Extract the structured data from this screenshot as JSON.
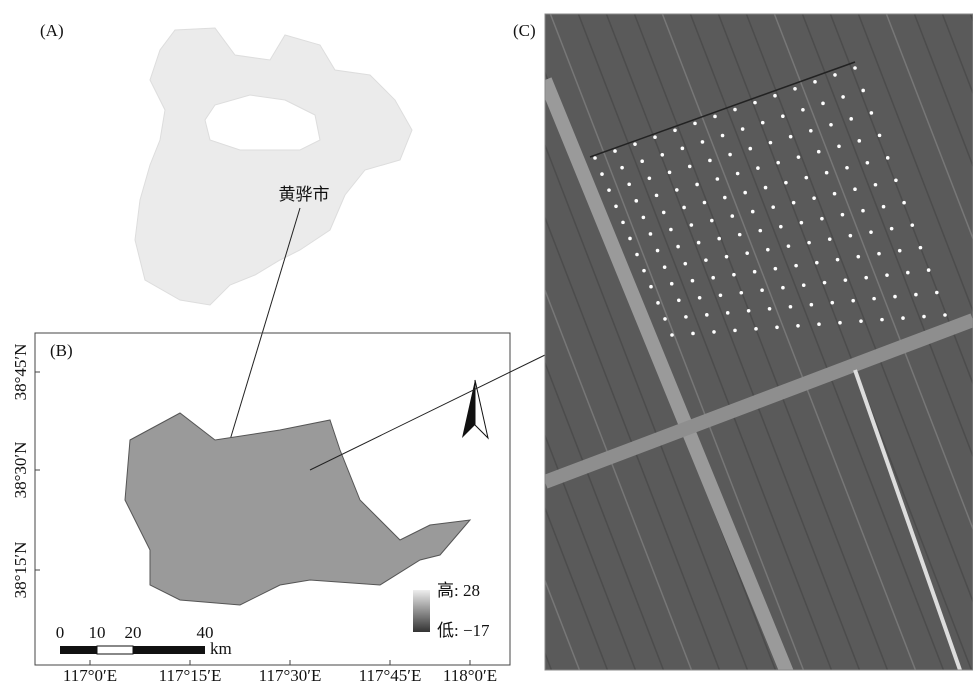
{
  "panels": {
    "a": {
      "label": "(A)",
      "place": "黄骅市"
    },
    "b": {
      "label": "(B)",
      "latitudes": [
        "38°45′N",
        "38°30′N",
        "38°15′N"
      ],
      "longitudes": [
        "117°0′E",
        "117°15′E",
        "117°30′E",
        "117°45′E",
        "118°0′E"
      ],
      "scale": [
        "0",
        "10",
        "20",
        "40"
      ],
      "scale_unit": "km",
      "legend": {
        "high": "高: 28",
        "low": "低: −17"
      }
    },
    "c": {
      "label": "(C)"
    }
  }
}
